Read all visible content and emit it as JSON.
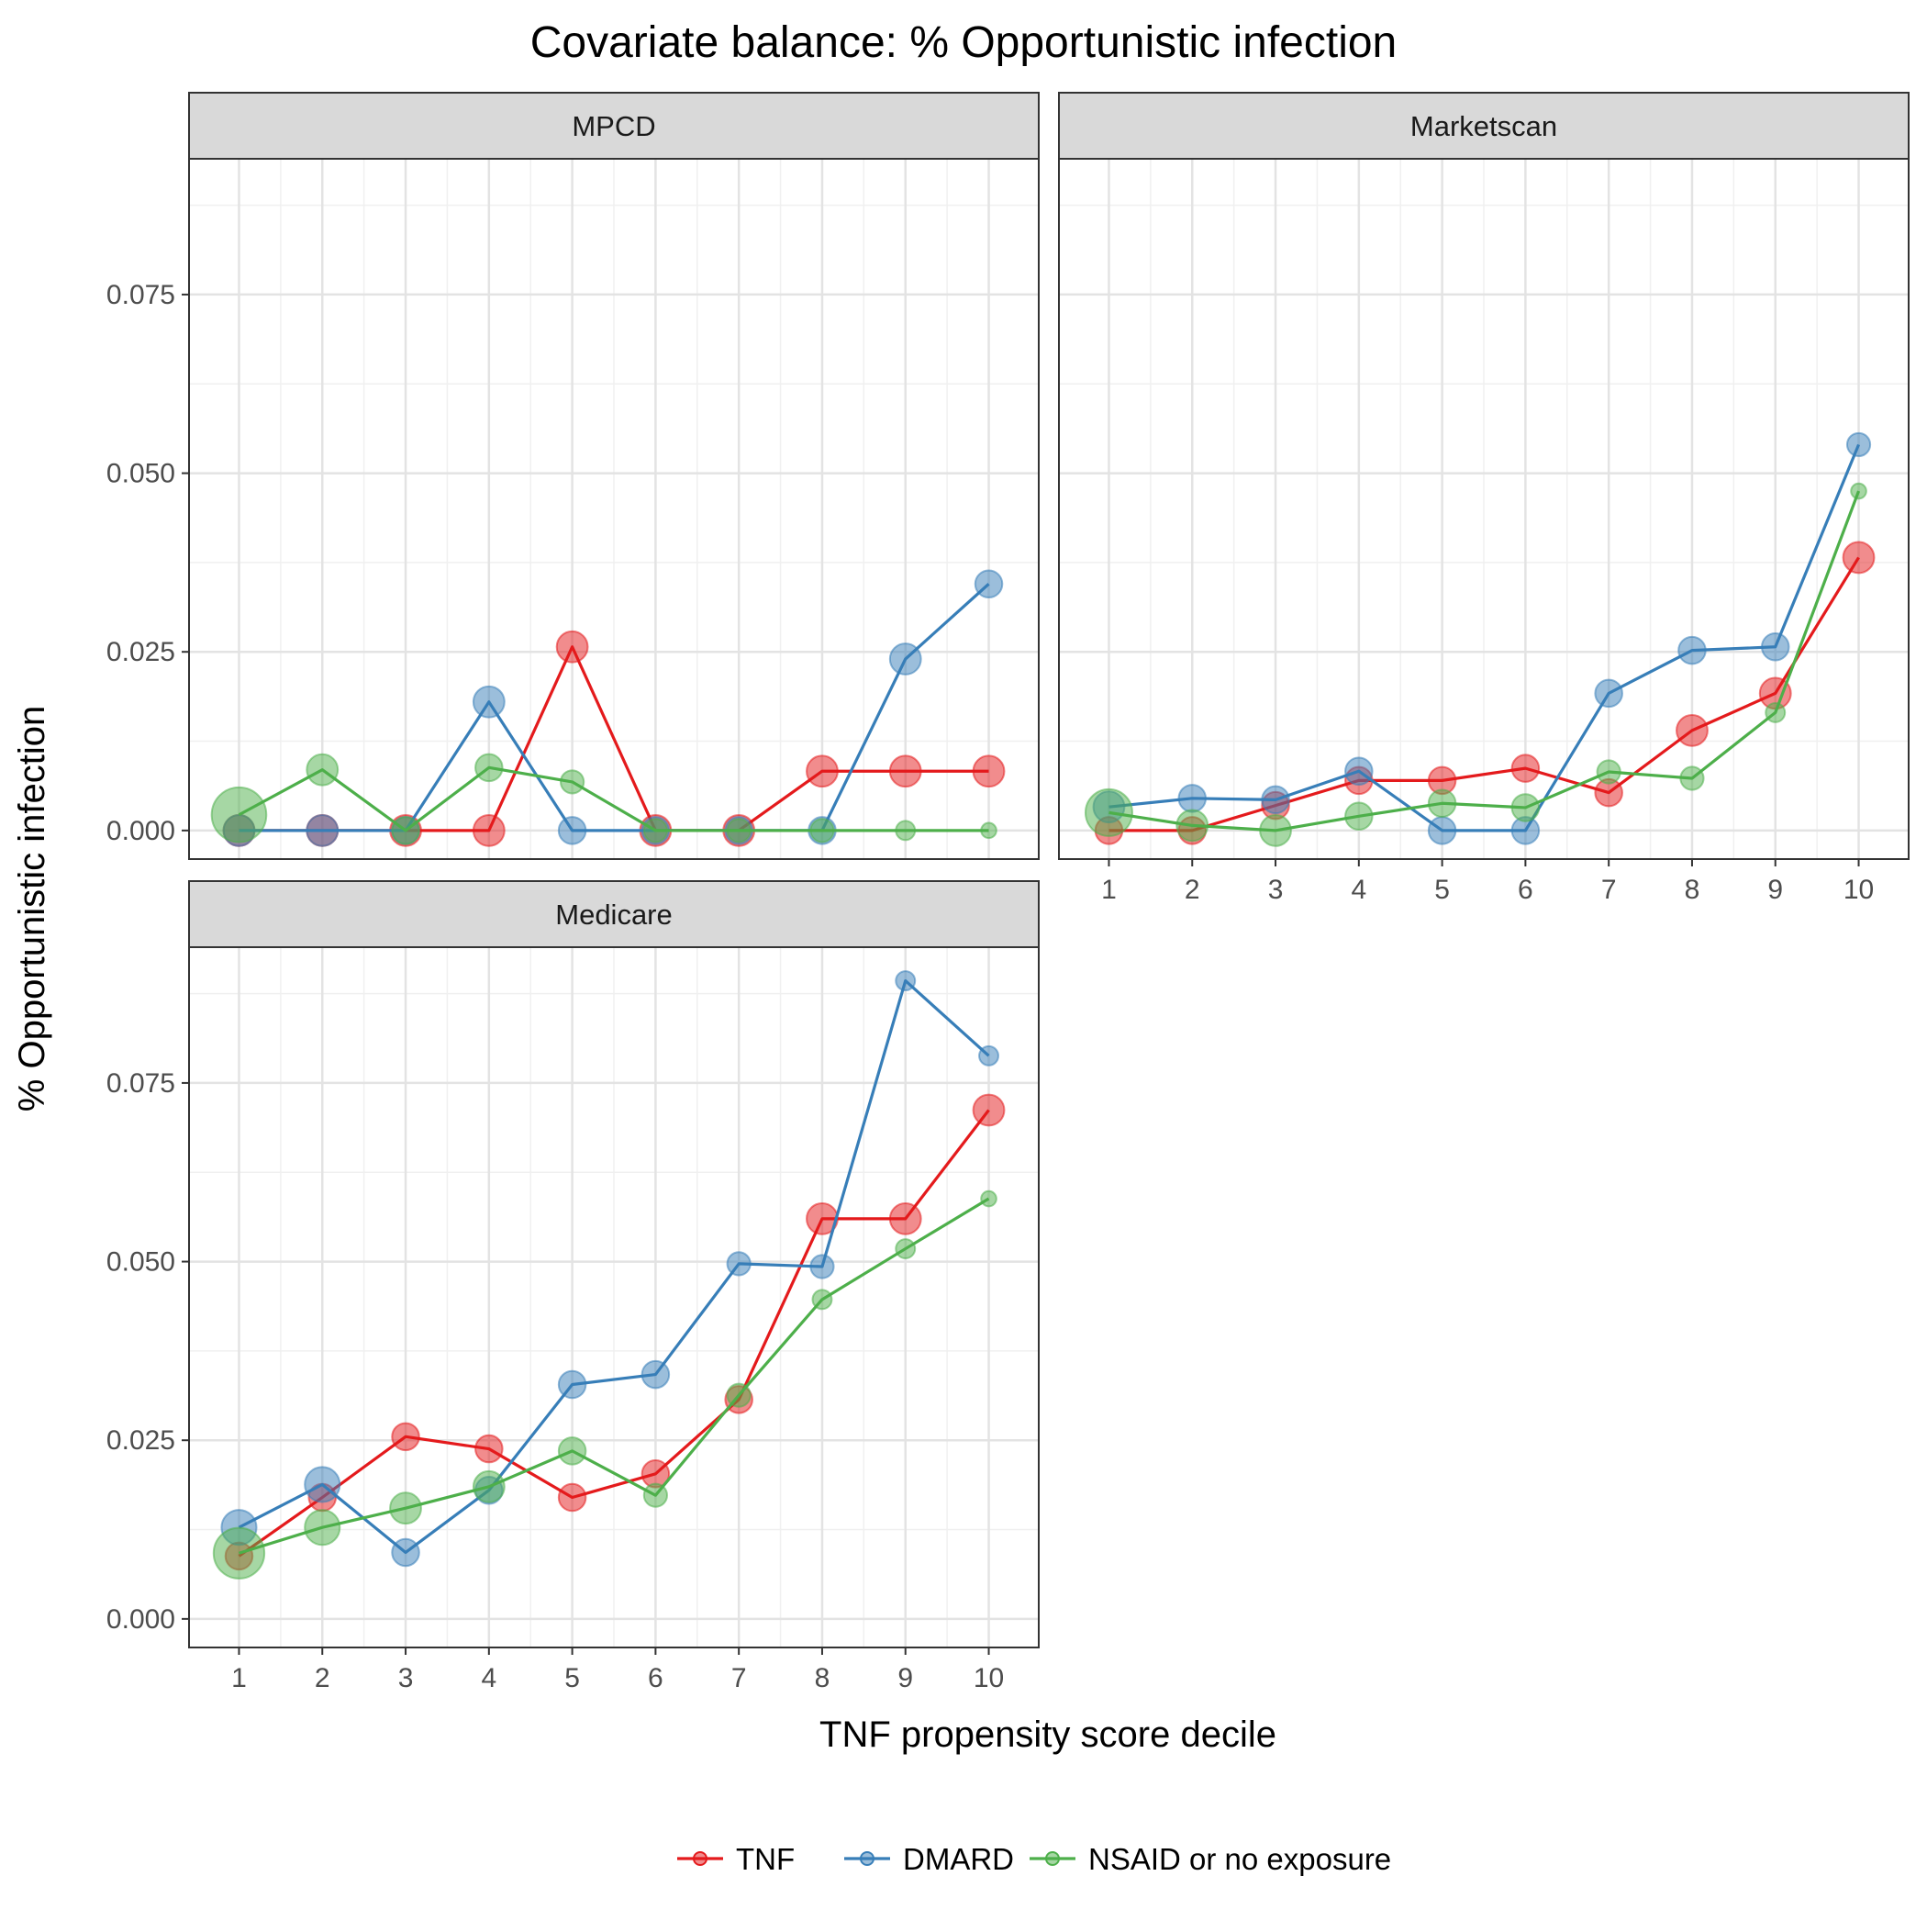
{
  "title": "Covariate balance: % Opportunistic infection",
  "xlabel": "TNF propensity score decile",
  "ylabel": "% Opportunistic infection",
  "colors": {
    "TNF": "#e41a1c",
    "DMARD": "#377eb8",
    "NSAID or no exposure": "#4daf4a"
  },
  "chart_data": {
    "type": "line",
    "x": [
      1,
      2,
      3,
      4,
      5,
      6,
      7,
      8,
      9,
      10
    ],
    "xticks": [
      "1",
      "2",
      "3",
      "4",
      "5",
      "6",
      "7",
      "8",
      "9",
      "10"
    ],
    "yticks": [
      "0.000",
      "0.025",
      "0.050",
      "0.075"
    ],
    "ylim": [
      -0.004,
      0.094
    ],
    "grid": true,
    "legend_position": "bottom",
    "series_names": [
      "TNF",
      "DMARD",
      "NSAID or no exposure"
    ],
    "panels": [
      {
        "label": "MPCD",
        "series": [
          {
            "name": "TNF",
            "values": [
              0,
              0,
              0,
              0,
              0.0257,
              0,
              0,
              0.0083,
              0.0083,
              0.0083
            ],
            "sizes": [
              3,
              3,
              3,
              3,
              3,
              3,
              3,
              3,
              3,
              3
            ]
          },
          {
            "name": "DMARD",
            "values": [
              0,
              0,
              0,
              0.018,
              0,
              0,
              0,
              0,
              0.024,
              0.0345
            ],
            "sizes": [
              3,
              3,
              2.5,
              3,
              2.5,
              2.5,
              2.5,
              2.5,
              3,
              2.5
            ]
          },
          {
            "name": "NSAID or no exposure",
            "values": [
              0.0022,
              0.0085,
              0,
              0.0088,
              0.0068,
              0,
              0,
              0,
              0,
              0
            ],
            "sizes": [
              6,
              3,
              2.5,
              2.5,
              2,
              2,
              2,
              2,
              1.5,
              1
            ]
          }
        ]
      },
      {
        "label": "Marketscan",
        "series": [
          {
            "name": "TNF",
            "values": [
              0,
              0,
              0.0035,
              0.007,
              0.007,
              0.0087,
              0.0053,
              0.014,
              0.0192,
              0.0382
            ],
            "sizes": [
              2.5,
              2.5,
              2.5,
              2.5,
              2.5,
              2.5,
              2.5,
              3,
              3,
              3
            ]
          },
          {
            "name": "DMARD",
            "values": [
              0.0033,
              0.0045,
              0.0043,
              0.0083,
              0,
              0,
              0.0192,
              0.0252,
              0.0257,
              0.054
            ],
            "sizes": [
              3,
              2.5,
              2.5,
              2.5,
              2.5,
              2.5,
              2.5,
              2.5,
              2.5,
              2
            ]
          },
          {
            "name": "NSAID or no exposure",
            "values": [
              0.0025,
              0.0007,
              0,
              0.002,
              0.0038,
              0.0032,
              0.0082,
              0.0073,
              0.0165,
              0.0475
            ],
            "sizes": [
              5,
              3,
              3,
              2.5,
              2.5,
              2.5,
              2,
              2,
              1.5,
              1
            ]
          }
        ]
      },
      {
        "label": "Medicare",
        "series": [
          {
            "name": "TNF",
            "values": [
              0.0088,
              0.017,
              0.0255,
              0.0238,
              0.017,
              0.0203,
              0.0307,
              0.056,
              0.056,
              0.0712
            ],
            "sizes": [
              2.5,
              2.5,
              2.5,
              2.5,
              2.5,
              2.5,
              2.5,
              3,
              3,
              3
            ]
          },
          {
            "name": "DMARD",
            "values": [
              0.0128,
              0.0188,
              0.0093,
              0.018,
              0.0328,
              0.0342,
              0.0497,
              0.0493,
              0.0893,
              0.0788
            ],
            "sizes": [
              3.5,
              3.5,
              2.5,
              2.5,
              2.5,
              2.5,
              2,
              2,
              1.5,
              1.5
            ]
          },
          {
            "name": "NSAID or no exposure",
            "values": [
              0.0092,
              0.0128,
              0.0155,
              0.0185,
              0.0235,
              0.0173,
              0.0313,
              0.0447,
              0.0518,
              0.0588
            ],
            "sizes": [
              5.5,
              3.5,
              3,
              3,
              2.5,
              2,
              2,
              1.5,
              1.5,
              1
            ]
          }
        ]
      }
    ]
  }
}
